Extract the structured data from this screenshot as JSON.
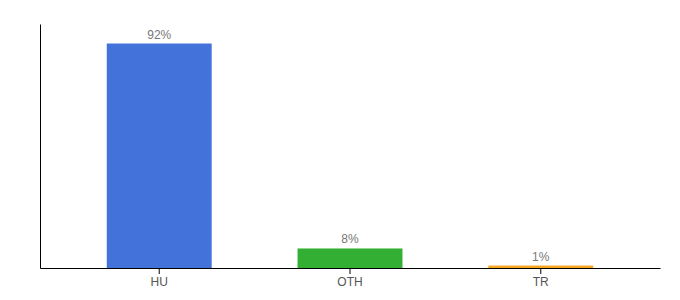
{
  "chart_data": {
    "type": "bar",
    "categories": [
      "HU",
      "OTH",
      "TR"
    ],
    "values": [
      92,
      8,
      1
    ],
    "value_labels": [
      "92%",
      "8%",
      "1%"
    ],
    "colors": [
      "#4472db",
      "#33b033",
      "#f5a623"
    ],
    "ylim": [
      0,
      100
    ],
    "data_labels": true,
    "tick_labels": "x"
  }
}
